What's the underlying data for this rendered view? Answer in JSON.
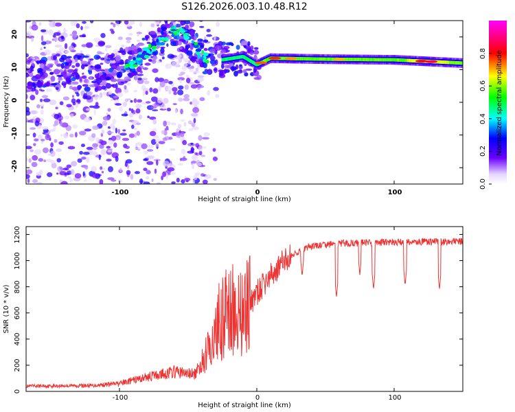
{
  "title": "S126.2026.003.10.48.R12",
  "chart_data": [
    {
      "type": "heatmap",
      "xlabel": "Height of straight line (km)",
      "ylabel": "Frequency (Hz)",
      "xlim": [
        -168,
        150
      ],
      "ylim": [
        -25,
        25
      ],
      "x_ticks": [
        "-100",
        "0",
        "100"
      ],
      "y_ticks": [
        "20",
        "10",
        "0",
        "-10",
        "-20"
      ],
      "colorbar": {
        "label": "Normalized spectral amplitude",
        "range": [
          0,
          1
        ],
        "ticks": [
          "0.0",
          "0.2",
          "0.4",
          "0.6",
          "0.8"
        ],
        "colors": [
          "#ffffff",
          "#6a00ff",
          "#0000ff",
          "#00ffff",
          "#00ff00",
          "#ffff00",
          "#ff0000",
          "#ff00ff"
        ]
      },
      "ridge": [
        {
          "x": -168,
          "f": 8
        },
        {
          "x": -140,
          "f": 9
        },
        {
          "x": -110,
          "f": 9
        },
        {
          "x": -90,
          "f": 12
        },
        {
          "x": -75,
          "f": 17
        },
        {
          "x": -62,
          "f": 22
        },
        {
          "x": -50,
          "f": 20
        },
        {
          "x": -40,
          "f": 14
        },
        {
          "x": -25,
          "f": 13
        },
        {
          "x": -10,
          "f": 14
        },
        {
          "x": 0,
          "f": 11.5
        },
        {
          "x": 10,
          "f": 13.5
        },
        {
          "x": 50,
          "f": 13.2
        },
        {
          "x": 100,
          "f": 13
        },
        {
          "x": 125,
          "f": 12.5
        },
        {
          "x": 150,
          "f": 12
        }
      ]
    },
    {
      "type": "line",
      "xlabel": "Height of straight line (km)",
      "ylabel": "SNR (10 * v/v)",
      "xlim": [
        -168,
        150
      ],
      "ylim": [
        0,
        1260
      ],
      "x_ticks": [
        "-100",
        "0",
        "100"
      ],
      "y_ticks": [
        "0",
        "200",
        "400",
        "600",
        "800",
        "1000",
        "1200"
      ],
      "color": "#ee3333",
      "envelope": [
        {
          "x": -168,
          "y": 40
        },
        {
          "x": -120,
          "y": 45
        },
        {
          "x": -100,
          "y": 60
        },
        {
          "x": -80,
          "y": 110
        },
        {
          "x": -60,
          "y": 150
        },
        {
          "x": -45,
          "y": 130
        },
        {
          "x": -35,
          "y": 300
        },
        {
          "x": -28,
          "y": 500
        },
        {
          "x": -20,
          "y": 600
        },
        {
          "x": -10,
          "y": 580
        },
        {
          "x": 0,
          "y": 750
        },
        {
          "x": 10,
          "y": 880
        },
        {
          "x": 20,
          "y": 1000
        },
        {
          "x": 30,
          "y": 1070
        },
        {
          "x": 40,
          "y": 1110
        },
        {
          "x": 60,
          "y": 1130
        },
        {
          "x": 90,
          "y": 1140
        },
        {
          "x": 150,
          "y": 1145
        }
      ],
      "dips": [
        {
          "x": 33,
          "y": 880
        },
        {
          "x": 58,
          "y": 720
        },
        {
          "x": 75,
          "y": 890
        },
        {
          "x": 85,
          "y": 780
        },
        {
          "x": 108,
          "y": 810
        },
        {
          "x": 133,
          "y": 780
        }
      ]
    }
  ]
}
